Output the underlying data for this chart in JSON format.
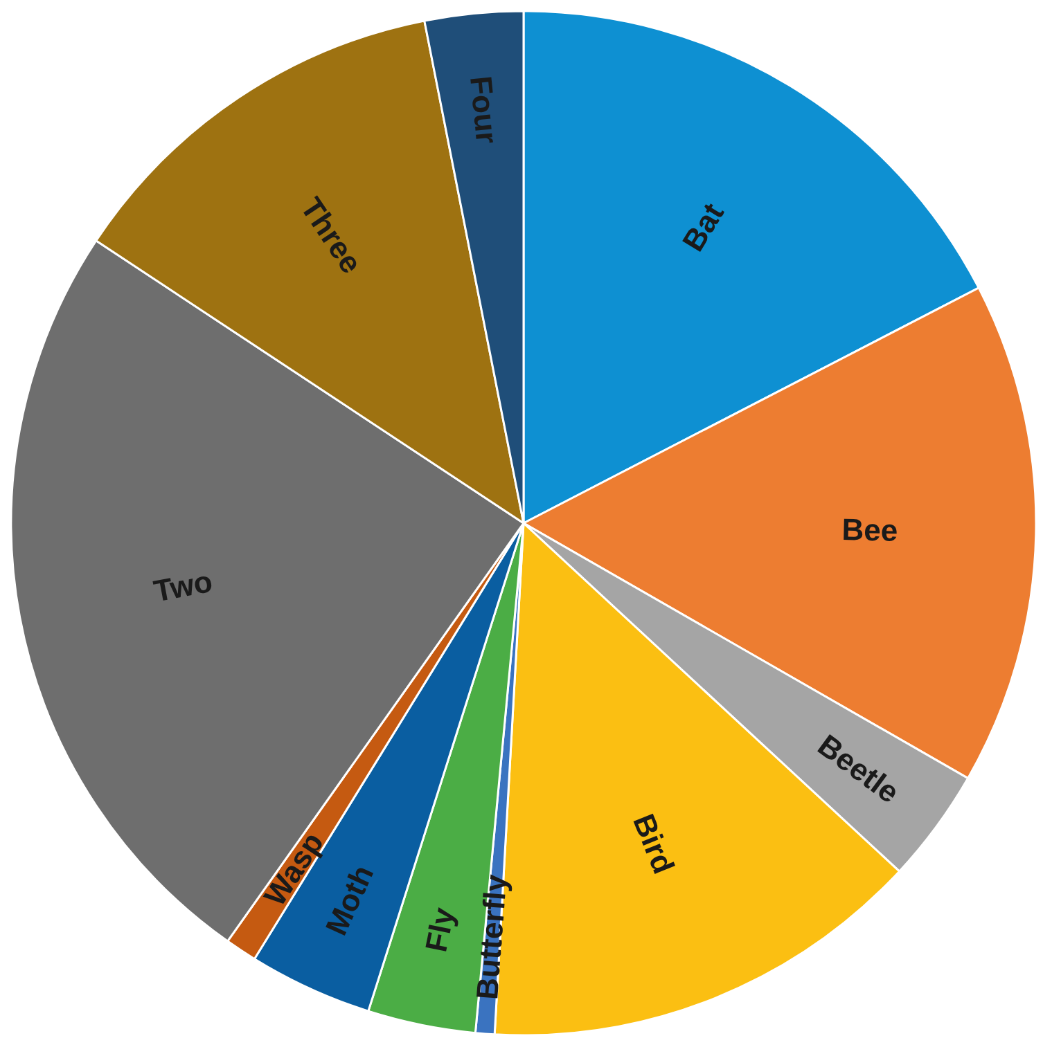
{
  "chart_data": {
    "type": "pie",
    "categories": [
      "Bat",
      "Bee",
      "Beetle",
      "Bird",
      "Butterfly",
      "Fly",
      "Moth",
      "Wasp",
      "Two",
      "Three",
      "Four"
    ],
    "values": [
      17.4,
      15.9,
      3.6,
      14.0,
      0.6,
      3.4,
      3.9,
      1.0,
      24.5,
      12.6,
      3.1
    ],
    "colors": [
      "#0e90d2",
      "#ed7d31",
      "#a5a5a5",
      "#fbbf12",
      "#3a73c0",
      "#4bad45",
      "#0a5ea1",
      "#c55a11",
      "#6e6e6e",
      "#9e7211",
      "#1f4e79"
    ],
    "legend": false
  }
}
